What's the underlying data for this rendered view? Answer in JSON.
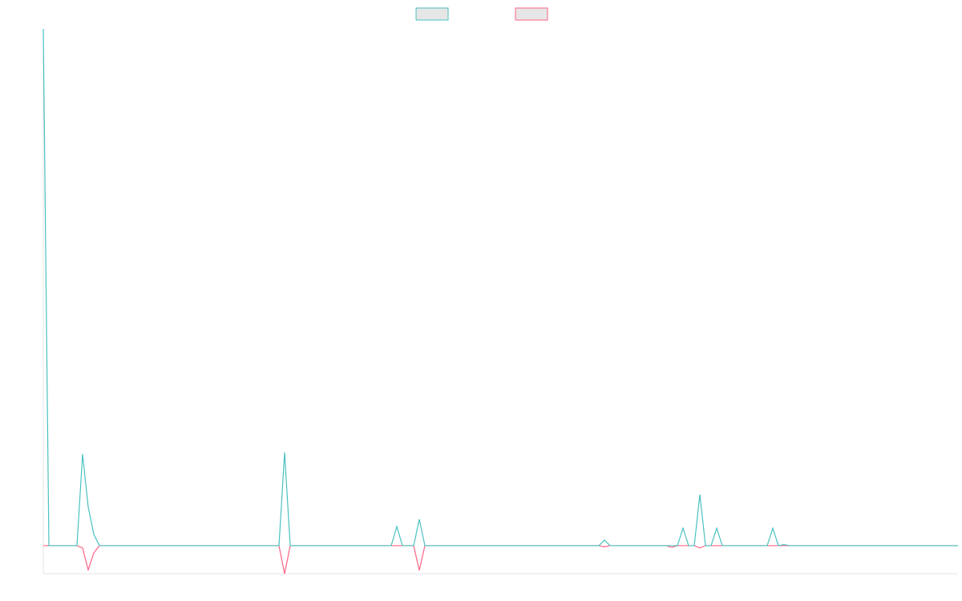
{
  "chart_data": {
    "type": "line",
    "legend": "top",
    "ylim": [
      -5,
      92
    ],
    "series": [
      {
        "color": "#4bc0c0",
        "values": [
          92,
          0,
          0,
          0,
          0,
          0,
          0,
          16.3,
          6.9,
          2,
          0,
          0,
          0,
          0,
          0,
          0,
          0,
          0,
          0,
          0,
          0,
          0,
          0,
          0,
          0,
          0,
          0,
          0,
          0,
          0,
          0,
          0,
          0,
          0,
          0,
          0,
          0,
          0,
          0,
          0,
          0,
          0,
          0,
          16.6,
          0,
          0,
          0,
          0,
          0,
          0,
          0,
          0,
          0,
          0,
          0,
          0,
          0,
          0,
          0,
          0,
          0,
          0,
          0,
          3.4,
          0,
          0,
          0,
          4.7,
          0,
          0,
          0,
          0,
          0,
          0,
          0,
          0,
          0,
          0,
          0,
          0,
          0,
          0,
          0,
          0,
          0,
          0,
          0,
          0,
          0,
          0,
          0,
          0,
          0,
          0,
          0,
          0,
          0,
          0,
          0,
          0,
          1,
          0,
          0,
          0,
          0,
          0,
          0,
          0,
          0,
          0,
          0,
          0,
          0,
          0,
          3.1,
          0,
          0,
          9.1,
          0,
          0,
          3.1,
          0,
          0,
          0,
          0,
          0,
          0,
          0,
          0,
          0,
          3.1,
          0,
          0.2,
          0,
          0,
          0,
          0,
          0,
          0,
          0,
          0,
          0,
          0,
          0,
          0,
          0,
          0,
          0,
          0,
          0,
          0,
          0,
          0,
          0,
          0,
          0,
          0,
          0,
          0,
          0,
          0,
          0,
          0,
          0
        ]
      },
      {
        "color": "#ff6384",
        "values": [
          0,
          0,
          0,
          0,
          0,
          0,
          0,
          -0.4,
          -4.3,
          -1.3,
          0,
          0,
          0,
          0,
          0,
          0,
          0,
          0,
          0,
          0,
          0,
          0,
          0,
          0,
          0,
          0,
          0,
          0,
          0,
          0,
          0,
          0,
          0,
          0,
          0,
          0,
          0,
          0,
          0,
          0,
          0,
          0,
          0,
          -5,
          0,
          0,
          0,
          0,
          0,
          0,
          0,
          0,
          0,
          0,
          0,
          0,
          0,
          0,
          0,
          0,
          0,
          0,
          0,
          0,
          0,
          0,
          0,
          -4.4,
          0,
          0,
          0,
          0,
          0,
          0,
          0,
          0,
          0,
          0,
          0,
          0,
          0,
          0,
          0,
          0,
          0,
          0,
          0,
          0,
          0,
          0,
          0,
          0,
          0,
          0,
          0,
          0,
          0,
          0,
          0,
          0,
          -0.2,
          0,
          0,
          0,
          0,
          0,
          0,
          0,
          0,
          0,
          0,
          0,
          -0.3,
          0,
          0,
          0,
          0,
          -0.4,
          0,
          0,
          0,
          0,
          0,
          0,
          0,
          0,
          0,
          0,
          0,
          0,
          0,
          0,
          0,
          0,
          0,
          0,
          0,
          0,
          0,
          0,
          0,
          0,
          0,
          0,
          0,
          0,
          0,
          0,
          0,
          0,
          0,
          0,
          0,
          0,
          0,
          0,
          0,
          0,
          0,
          0,
          0,
          0,
          0,
          0
        ]
      }
    ]
  }
}
